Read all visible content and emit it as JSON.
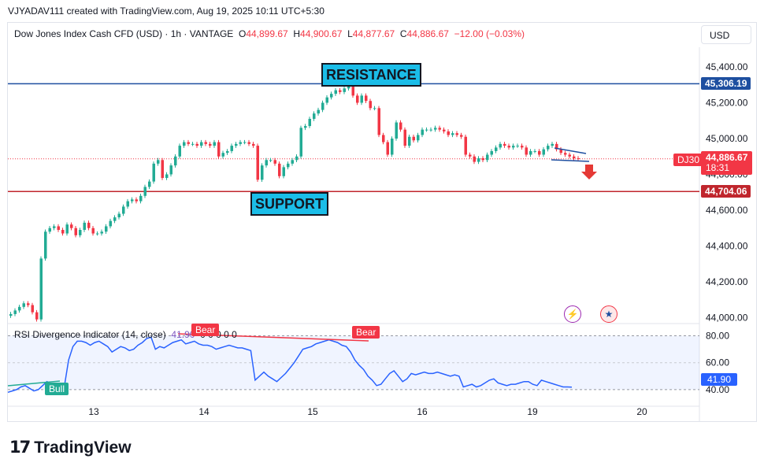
{
  "caption": "VJYADAV111 created with TradingView.com, Aug 19, 2025 10:11 UTC+5:30",
  "legend": {
    "symbol": "Dow Jones Index Cash CFD (USD) · 1h · VANTAGE",
    "o_key": "O",
    "o_val": "44,899.67",
    "h_key": "H",
    "h_val": "44,900.67",
    "l_key": "L",
    "l_val": "44,877.67",
    "c_key": "C",
    "c_val": "44,886.67",
    "change": "−12.00 (−0.03%)"
  },
  "currency": "USD",
  "ticker_tag": "DJ30",
  "current_price": "44,886.67",
  "countdown": "18:31",
  "resistance_price": "45,306.19",
  "support_price": "44,704.06",
  "resistance_label": "RESISTANCE",
  "support_label": "SUPPORT",
  "rsi": {
    "title": "RSI Divergence Indicator (14, close)",
    "value_inline": "41.90",
    "zeros": "0 0 0 0 0",
    "value_tag": "41.90",
    "bull_label": "Bull",
    "bear_label_1": "Bear",
    "bear_label_2": "Bear",
    "ticks": [
      "80.00",
      "60.00",
      "40.00"
    ]
  },
  "brand": "TradingView",
  "colors": {
    "up": "#22ab94",
    "down": "#f23645",
    "rsi": "#2962ff",
    "resistance": "#1e4fa0",
    "support": "#c0262d"
  },
  "chart_data": [
    {
      "type": "candlestick",
      "title": "Dow Jones Index Cash CFD (USD) · 1h · VANTAGE",
      "x_ticks": [
        "13",
        "14",
        "15",
        "16",
        "19",
        "20"
      ],
      "y_ticks": [
        "45,400.00",
        "45,200.00",
        "45,000.00",
        "44,800.00",
        "44,600.00",
        "44,400.00",
        "44,200.00",
        "44,000.00"
      ],
      "ylim": [
        43980,
        45510
      ],
      "horizontal_levels": [
        45306.19,
        44704.06
      ],
      "close_path": [
        44020,
        44040,
        44060,
        44080,
        44070,
        44030,
        43990,
        44330,
        44480,
        44500,
        44510,
        44490,
        44470,
        44520,
        44500,
        44460,
        44490,
        44530,
        44500,
        44470,
        44470,
        44480,
        44510,
        44540,
        44560,
        44580,
        44620,
        44650,
        44660,
        44650,
        44680,
        44730,
        44760,
        44860,
        44880,
        44780,
        44800,
        44850,
        44900,
        44960,
        44980,
        44970,
        44970,
        44960,
        44980,
        44970,
        44960,
        44980,
        44900,
        44920,
        44930,
        44960,
        44970,
        44980,
        44980,
        44970,
        44960,
        44770,
        44850,
        44880,
        44880,
        44860,
        44790,
        44840,
        44860,
        44880,
        44900,
        45060,
        45070,
        45110,
        45140,
        45160,
        45200,
        45230,
        45250,
        45270,
        45260,
        45280,
        45290,
        45240,
        45200,
        45240,
        45210,
        45170,
        45170,
        45020,
        44980,
        44910,
        45000,
        45090,
        45050,
        44960,
        45010,
        44990,
        45020,
        45050,
        45050,
        45050,
        45060,
        45050,
        45040,
        45020,
        45030,
        45020,
        45010,
        44910,
        44900,
        44870,
        44890,
        44880,
        44910,
        44930,
        44950,
        44970,
        44960,
        44950,
        44960,
        44960,
        44950,
        44910,
        44930,
        44930,
        44910,
        44940,
        44960,
        44970,
        44940,
        44920,
        44910,
        44900,
        44890,
        44886.67
      ]
    },
    {
      "type": "line",
      "title": "RSI Divergence Indicator (14, close)",
      "ylim": [
        30,
        85
      ],
      "y_ticks": [
        "80.00",
        "60.00",
        "40.00"
      ],
      "values": [
        38,
        39,
        40,
        42,
        43,
        41,
        39,
        40,
        43,
        46,
        44,
        41,
        39,
        42,
        62,
        72,
        76,
        76,
        75,
        73,
        75,
        76,
        74,
        72,
        68,
        70,
        72,
        71,
        69,
        70,
        73,
        75,
        78,
        79,
        70,
        72,
        71,
        73,
        75,
        76,
        77,
        74,
        75,
        76,
        74,
        73,
        73,
        72,
        70,
        71,
        72,
        73,
        72,
        71,
        71,
        70,
        69,
        47,
        50,
        53,
        50,
        48,
        46,
        49,
        52,
        56,
        60,
        65,
        70,
        71,
        72,
        74,
        75,
        76,
        77,
        76,
        75,
        73,
        72,
        68,
        62,
        58,
        55,
        50,
        47,
        43,
        44,
        48,
        52,
        54,
        50,
        46,
        48,
        52,
        51,
        52,
        53,
        52,
        52,
        53,
        52,
        51,
        50,
        51,
        50,
        42,
        43,
        44,
        42,
        43,
        45,
        47,
        48,
        45,
        44,
        43,
        44,
        44,
        45,
        46,
        46,
        44,
        43,
        47,
        46,
        45,
        44,
        43,
        42,
        42,
        41.9
      ]
    }
  ]
}
